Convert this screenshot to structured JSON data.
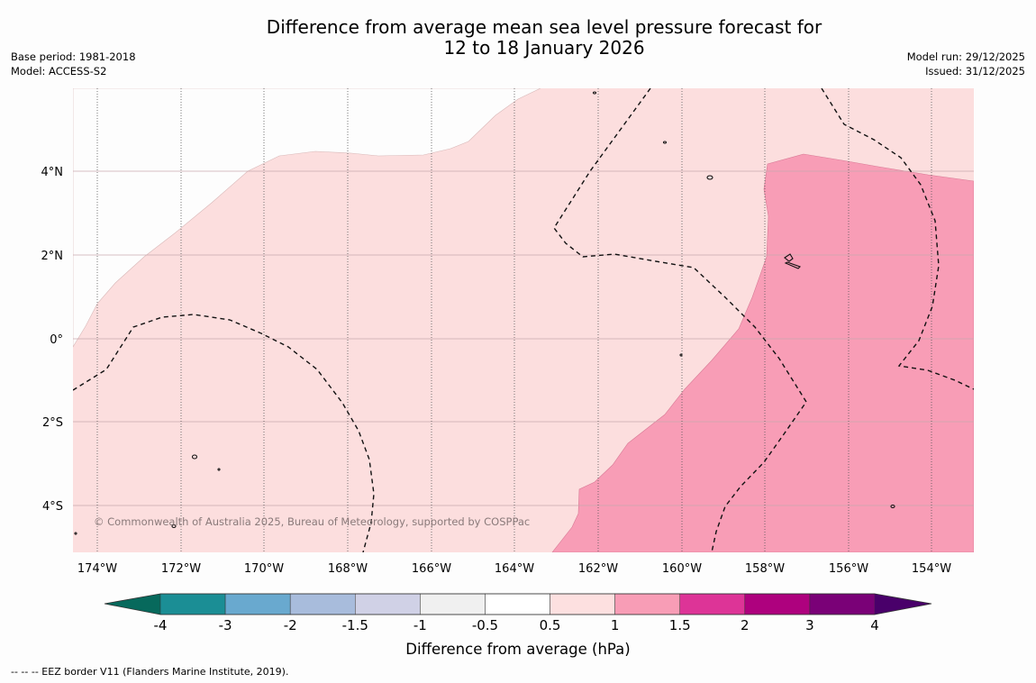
{
  "title": {
    "line1": "Difference from average mean sea level pressure forecast for",
    "line2": "12 to 18 January 2026"
  },
  "meta_left": {
    "base_period": "Base period: 1981-2018",
    "model": "Model: ACCESS-S2"
  },
  "meta_right": {
    "model_run": "Model run: 29/12/2025",
    "issued": "Issued: 31/12/2025"
  },
  "map": {
    "lat_labels": [
      "4°N",
      "2°N",
      "0°",
      "2°S",
      "4°S"
    ],
    "lon_labels": [
      "174°W",
      "172°W",
      "170°W",
      "168°W",
      "166°W",
      "164°W",
      "162°W",
      "160°W",
      "158°W",
      "156°W",
      "154°W"
    ],
    "copyright": "© Commonwealth of Australia 2025, Bureau of Meteorology, supported by COSPPac",
    "colors": {
      "band_0_5_to_1": "#fcdede",
      "band_1_to_1_5": "#f89db6",
      "grid": "#c8a8ae",
      "meridian": "#666666"
    }
  },
  "colorbar": {
    "ticks": [
      "-4",
      "-3",
      "-2",
      "-1.5",
      "-1",
      "-0.5",
      "0.5",
      "1",
      "1.5",
      "2",
      "3",
      "4"
    ],
    "colors": [
      "#07695c",
      "#1b8e95",
      "#69a9cf",
      "#a8bcdc",
      "#d0d1e6",
      "#f0f0f0",
      "#ffffff",
      "#fde0e0",
      "#f89db6",
      "#dd3497",
      "#ae017e",
      "#7a0177",
      "#49006a"
    ],
    "label": "Difference from average (hPa)"
  },
  "footer": {
    "legend_text": "--  --  -- EEZ border V11 (Flanders Marine Institute, 2019)."
  }
}
